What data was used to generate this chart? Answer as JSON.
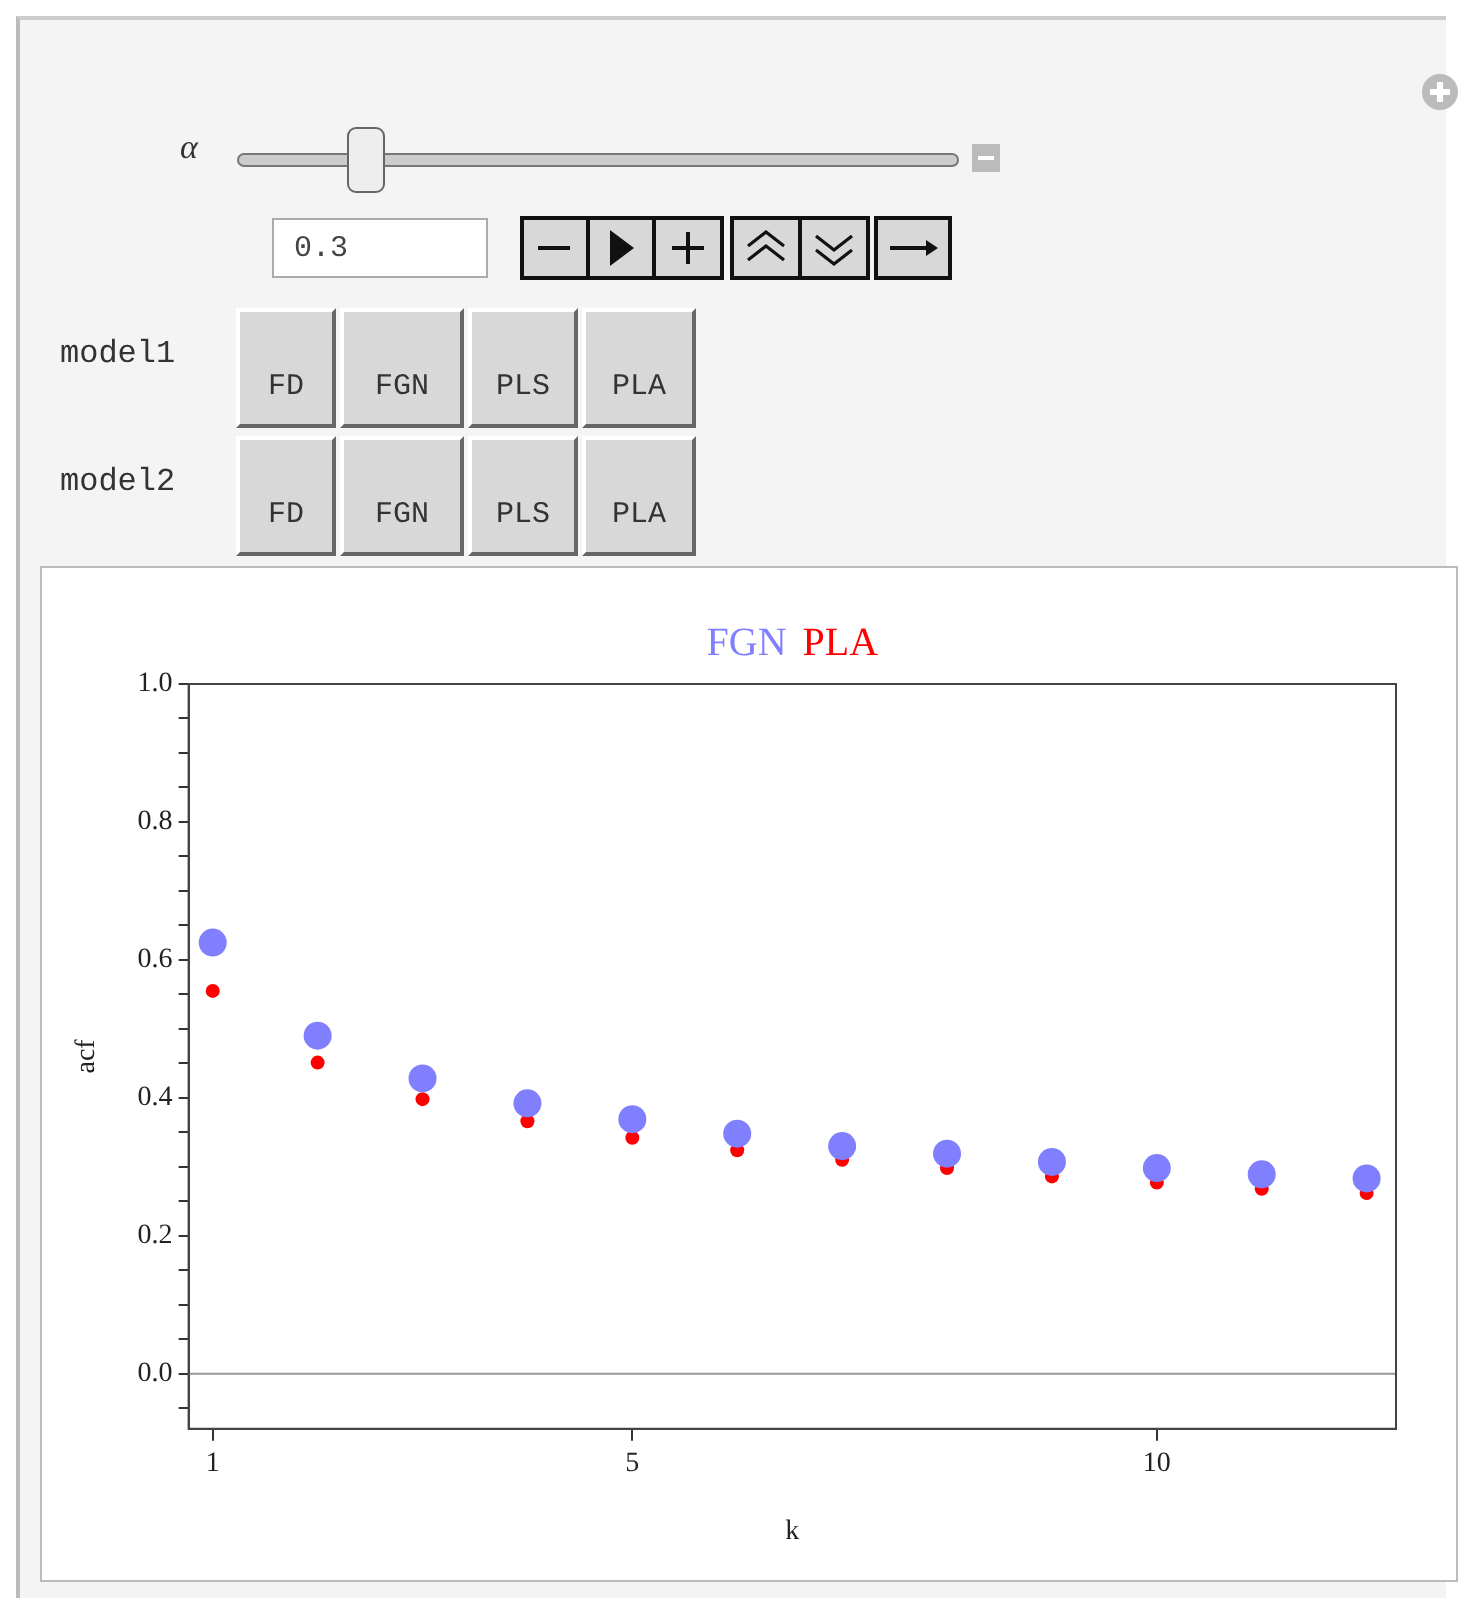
{
  "chart_data": {
    "type": "scatter",
    "title": null,
    "xlabel": "k",
    "ylabel": "acf",
    "annotations": [
      "α",
      "0.3",
      "model1",
      "FD",
      "FGN",
      "PLS",
      "PLA",
      "model2",
      "FD",
      "FGN",
      "PLS",
      "PLA"
    ],
    "x": [
      1,
      2,
      3,
      4,
      5,
      6,
      7,
      8,
      9,
      10,
      11,
      12
    ],
    "series": [
      {
        "name": "FGN",
        "color": "#8080ff",
        "values": [
          0.625,
          0.49,
          0.428,
          0.392,
          0.369,
          0.348,
          0.33,
          0.319,
          0.307,
          0.298,
          0.289,
          0.283
        ]
      },
      {
        "name": "PLA",
        "color": "#ff0000",
        "values": [
          0.555,
          0.451,
          0.398,
          0.366,
          0.342,
          0.324,
          0.31,
          0.298,
          0.286,
          0.277,
          0.268,
          0.262
        ]
      }
    ],
    "xlim": [
      0.77,
      12.28
    ],
    "xticks": [
      1,
      5,
      10
    ],
    "ylim": [
      -0.08,
      1.0
    ],
    "yticks": [
      {
        "value": -0.05,
        "label": null
      },
      {
        "value": 0,
        "label": "0.0"
      },
      {
        "value": 0.05,
        "label": null
      },
      {
        "value": 0.1,
        "label": null
      },
      {
        "value": 0.15,
        "label": null
      },
      {
        "value": 0.2,
        "label": "0.2"
      },
      {
        "value": 0.25,
        "label": null
      },
      {
        "value": 0.3,
        "label": null
      },
      {
        "value": 0.35,
        "label": null
      },
      {
        "value": 0.4,
        "label": "0.4"
      },
      {
        "value": 0.45,
        "label": null
      },
      {
        "value": 0.5,
        "label": null
      },
      {
        "value": 0.55,
        "label": null
      },
      {
        "value": 0.6,
        "label": "0.6"
      },
      {
        "value": 0.65,
        "label": null
      },
      {
        "value": 0.7,
        "label": null
      },
      {
        "value": 0.75,
        "label": null
      },
      {
        "value": 0.8,
        "label": "0.8"
      },
      {
        "value": 0.85,
        "label": null
      },
      {
        "value": 0.9,
        "label": null
      },
      {
        "value": 0.95,
        "label": null
      },
      {
        "value": 1.0,
        "label": "1.0"
      }
    ],
    "ref_lines": [
      {
        "axis": "y",
        "value": 0,
        "color": "#999999"
      }
    ],
    "legend": "top",
    "marker": "circle",
    "grid": false
  }
}
